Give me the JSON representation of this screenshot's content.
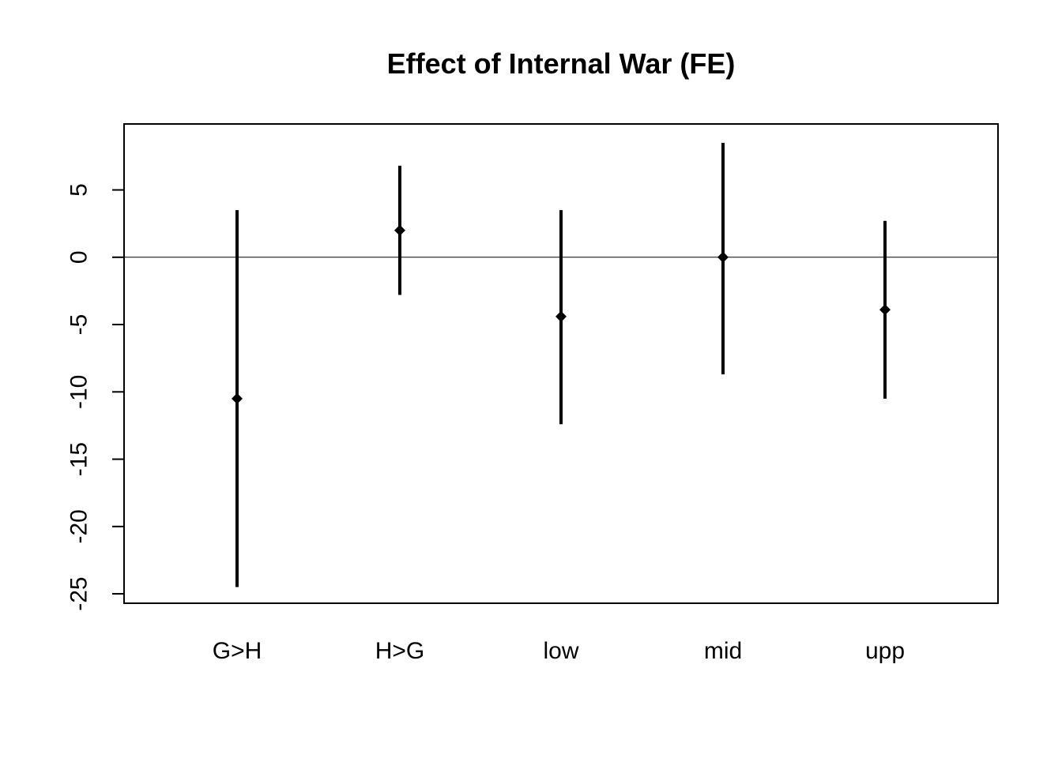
{
  "chart_data": {
    "type": "scatter",
    "title": "Effect of Internal War (FE)",
    "xlabel": "",
    "ylabel": "",
    "categories": [
      "G>H",
      "H>G",
      "low",
      "mid",
      "upp"
    ],
    "series": [
      {
        "estimate": [
          -10.5,
          2.0,
          -4.4,
          0.0,
          -3.9
        ],
        "lower": [
          -24.5,
          -2.8,
          -12.4,
          -8.7,
          -10.5
        ],
        "upper": [
          3.5,
          6.8,
          3.5,
          8.5,
          2.7
        ]
      }
    ],
    "ylim": [
      -25.7,
      9.9
    ],
    "yticks": [
      -25,
      -20,
      -15,
      -10,
      -5,
      0,
      5
    ],
    "reference_line": 0,
    "grid": false,
    "legend": "none",
    "colors": {
      "line": "#000000",
      "reference": "#000000"
    }
  }
}
